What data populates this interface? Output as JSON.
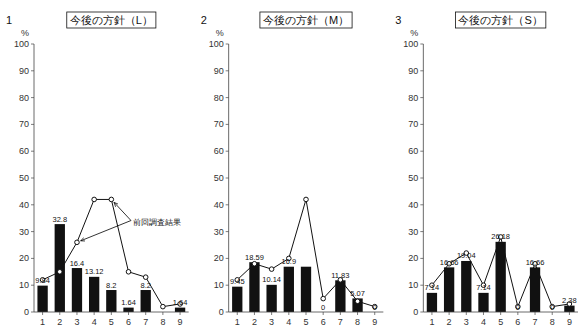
{
  "chart_data": [
    {
      "type": "bar",
      "title": "今後の方針（L）",
      "panel": "1",
      "y_label": "%",
      "annotation": "前回調査結果",
      "categories": [
        "1",
        "2",
        "3",
        "4",
        "5",
        "6",
        "7",
        "8",
        "9"
      ],
      "series": [
        {
          "type": "bar",
          "color": "#111111",
          "data_labels": true,
          "values": [
            9.84,
            32.8,
            16.4,
            13.12,
            8.2,
            1.64,
            8.2,
            0,
            1.64
          ],
          "value_labels": [
            "9.84",
            "32.8",
            "16.4",
            "13.12",
            "8.2",
            "1.64",
            "8.2",
            null,
            "1.64"
          ]
        },
        {
          "type": "line",
          "color": "#111111",
          "marker": "circle",
          "values": [
            12,
            15,
            26,
            42,
            42,
            15,
            13,
            2,
            3
          ]
        }
      ],
      "ylim": [
        0,
        100
      ],
      "yticks": [
        0,
        10,
        20,
        30,
        40,
        50,
        60,
        70,
        80,
        90,
        100
      ],
      "grid": false
    },
    {
      "type": "bar",
      "title": "今後の方針（M）",
      "panel": "2",
      "y_label": "%",
      "categories": [
        "1",
        "2",
        "3",
        "4",
        "5",
        "6",
        "7",
        "8",
        "9"
      ],
      "series": [
        {
          "type": "bar",
          "color": "#111111",
          "data_labels": true,
          "values": [
            9.45,
            18.59,
            10.14,
            16.9,
            16.9,
            0,
            11.83,
            5.07,
            0
          ],
          "value_labels": [
            "9.45",
            "18.59",
            "10.14",
            "16.9",
            null,
            "0",
            "11.83",
            "5.07",
            "0"
          ]
        },
        {
          "type": "line",
          "color": "#111111",
          "marker": "circle",
          "values": [
            12,
            18,
            16,
            20,
            42,
            5,
            12,
            4,
            2
          ]
        }
      ],
      "ylim": [
        0,
        100
      ],
      "yticks": [
        0,
        10,
        20,
        30,
        40,
        50,
        60,
        70,
        80,
        90,
        100
      ],
      "grid": false
    },
    {
      "type": "bar",
      "title": "今後の方針（S）",
      "panel": "3",
      "y_label": "%",
      "categories": [
        "1",
        "2",
        "3",
        "4",
        "5",
        "6",
        "7",
        "8",
        "9"
      ],
      "series": [
        {
          "type": "bar",
          "color": "#111111",
          "data_labels": true,
          "values": [
            7.14,
            16.66,
            19.04,
            7.14,
            26.18,
            0,
            16.66,
            0,
            2.38
          ],
          "value_labels": [
            "7.14",
            "16.66",
            "19.04",
            "7.14",
            "26.18",
            "0",
            "16.66",
            "0",
            "2.38"
          ]
        },
        {
          "type": "line",
          "color": "#111111",
          "marker": "circle",
          "values": [
            10,
            18,
            22,
            10,
            28,
            2,
            18,
            2,
            3
          ]
        }
      ],
      "ylim": [
        0,
        100
      ],
      "yticks": [
        0,
        10,
        20,
        30,
        40,
        50,
        60,
        70,
        80,
        90,
        100
      ],
      "grid": false
    }
  ]
}
